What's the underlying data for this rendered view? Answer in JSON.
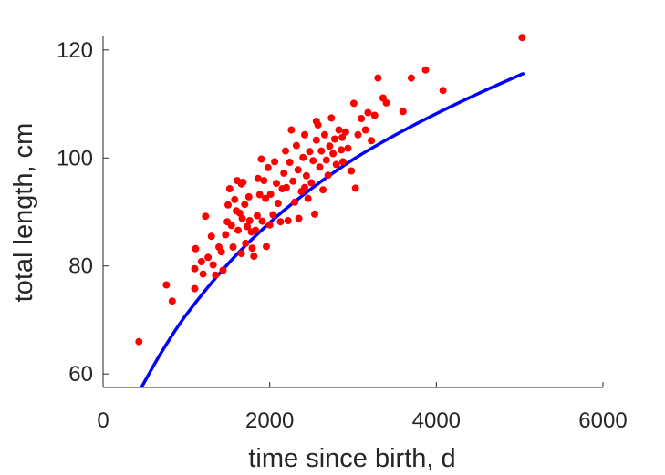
{
  "chart_data": {
    "type": "scatter",
    "title": "",
    "xlabel": "time since birth, d",
    "ylabel": "total length, cm",
    "xlim": [
      0,
      6000
    ],
    "ylim": [
      57.5,
      122.5
    ],
    "x_ticks": [
      0,
      2000,
      4000,
      6000
    ],
    "y_ticks": [
      60,
      80,
      100,
      120
    ],
    "x_tick_labels": [
      "0",
      "2000",
      "4000",
      "6000"
    ],
    "y_tick_labels": [
      "60",
      "80",
      "100",
      "120"
    ],
    "grid": false,
    "legend": "none",
    "series": [
      {
        "kind": "points",
        "color": "#ff0000",
        "points": [
          [
            430,
            66
          ],
          [
            760,
            76.5
          ],
          [
            830,
            73.5
          ],
          [
            1100,
            75.8
          ],
          [
            1100,
            79.5
          ],
          [
            1110,
            83.2
          ],
          [
            1180,
            80.8
          ],
          [
            1200,
            78.5
          ],
          [
            1230,
            89.2
          ],
          [
            1260,
            81.6
          ],
          [
            1300,
            85.5
          ],
          [
            1320,
            80.2
          ],
          [
            1350,
            78.3
          ],
          [
            1390,
            83.5
          ],
          [
            1420,
            82.6
          ],
          [
            1440,
            79.2
          ],
          [
            1470,
            85.8
          ],
          [
            1490,
            88.2
          ],
          [
            1500,
            91.3
          ],
          [
            1520,
            94.3
          ],
          [
            1540,
            87.5
          ],
          [
            1560,
            83.5
          ],
          [
            1580,
            92.3
          ],
          [
            1600,
            90.2
          ],
          [
            1610,
            95.8
          ],
          [
            1620,
            86.6
          ],
          [
            1640,
            89.8
          ],
          [
            1660,
            82.3
          ],
          [
            1670,
            88.8
          ],
          [
            1680,
            95.5
          ],
          [
            1700,
            91.4
          ],
          [
            1710,
            84.2
          ],
          [
            1730,
            87.3
          ],
          [
            1750,
            92.8
          ],
          [
            1760,
            88.4
          ],
          [
            1780,
            86.3
          ],
          [
            1790,
            83.3
          ],
          [
            1810,
            81.8
          ],
          [
            1830,
            86.6
          ],
          [
            1850,
            89.3
          ],
          [
            1860,
            96.2
          ],
          [
            1880,
            93.2
          ],
          [
            1900,
            99.8
          ],
          [
            1910,
            88.3
          ],
          [
            1930,
            95.8
          ],
          [
            1950,
            92.5
          ],
          [
            1960,
            83.6
          ],
          [
            1980,
            98.2
          ],
          [
            2000,
            87.6
          ],
          [
            2010,
            93.3
          ],
          [
            2040,
            89.5
          ],
          [
            2060,
            99.3
          ],
          [
            2080,
            95.3
          ],
          [
            2100,
            91.6
          ],
          [
            2130,
            88.2
          ],
          [
            2150,
            94.3
          ],
          [
            2170,
            97.2
          ],
          [
            2190,
            101.3
          ],
          [
            2200,
            94.5
          ],
          [
            2220,
            88.4
          ],
          [
            2240,
            99.2
          ],
          [
            2260,
            105.2
          ],
          [
            2280,
            95.7
          ],
          [
            2300,
            91.8
          ],
          [
            2320,
            102.3
          ],
          [
            2340,
            97.8
          ],
          [
            2350,
            88.8
          ],
          [
            2380,
            93.8
          ],
          [
            2400,
            100.1
          ],
          [
            2420,
            104.3
          ],
          [
            2440,
            96.7
          ],
          [
            2460,
            92.5
          ],
          [
            2480,
            101.2
          ],
          [
            2500,
            95.4
          ],
          [
            2520,
            99.5
          ],
          [
            2540,
            89.6
          ],
          [
            2560,
            103.3
          ],
          [
            2580,
            106.1
          ],
          [
            2600,
            98.3
          ],
          [
            2620,
            101.3
          ],
          [
            2640,
            94.1
          ],
          [
            2660,
            104.3
          ],
          [
            2680,
            99.6
          ],
          [
            2700,
            96.8
          ],
          [
            2720,
            102.2
          ],
          [
            2740,
            107.4
          ],
          [
            2760,
            100.8
          ],
          [
            2780,
            103.5
          ],
          [
            2800,
            98.8
          ],
          [
            2830,
            105.2
          ],
          [
            2860,
            101.5
          ],
          [
            2880,
            99.3
          ],
          [
            2910,
            104.8
          ],
          [
            2940,
            101.8
          ],
          [
            2980,
            97.6
          ],
          [
            3010,
            110.1
          ],
          [
            3030,
            94.4
          ],
          [
            3060,
            104.3
          ],
          [
            3100,
            107.3
          ],
          [
            3150,
            105.2
          ],
          [
            3180,
            108.4
          ],
          [
            3220,
            103.2
          ],
          [
            3260,
            107.9
          ],
          [
            3300,
            114.8
          ],
          [
            3360,
            111.1
          ],
          [
            3400,
            110.2
          ],
          [
            3600,
            108.6
          ],
          [
            3700,
            114.8
          ],
          [
            3870,
            116.3
          ],
          [
            4080,
            112.5
          ],
          [
            5030,
            122.3
          ],
          [
            2560,
            106.8
          ],
          [
            2420,
            94.5
          ],
          [
            1660,
            95.2
          ],
          [
            2870,
            103.8
          ]
        ]
      },
      {
        "kind": "curve",
        "color": "#0000ff",
        "points": [
          [
            460,
            57.5
          ],
          [
            700,
            64.0
          ],
          [
            1000,
            71.0
          ],
          [
            1500,
            80.4
          ],
          [
            2000,
            88.0
          ],
          [
            2500,
            94.3
          ],
          [
            3000,
            99.7
          ],
          [
            3500,
            104.2
          ],
          [
            4000,
            108.2
          ],
          [
            4500,
            111.9
          ],
          [
            5040,
            115.6
          ]
        ]
      }
    ]
  }
}
